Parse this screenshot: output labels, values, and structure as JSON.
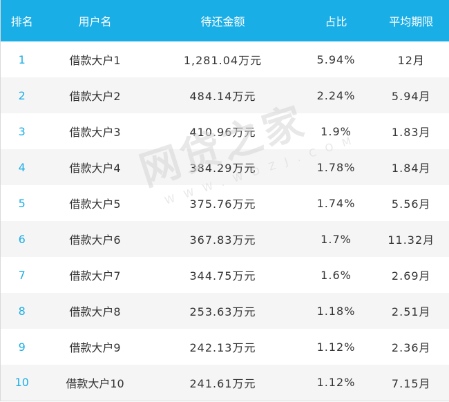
{
  "headers": {
    "rank": "排名",
    "user": "用户名",
    "amount": "待还金额",
    "ratio": "占比",
    "term": "平均期限"
  },
  "rows": [
    {
      "rank": "1",
      "user": "借款大户1",
      "amount": "1,281.04万元",
      "ratio": "5.94%",
      "term": "12月"
    },
    {
      "rank": "2",
      "user": "借款大户2",
      "amount": "484.14万元",
      "ratio": "2.24%",
      "term": "5.94月"
    },
    {
      "rank": "3",
      "user": "借款大户3",
      "amount": "410.96万元",
      "ratio": "1.9%",
      "term": "1.83月"
    },
    {
      "rank": "4",
      "user": "借款大户4",
      "amount": "384.29万元",
      "ratio": "1.78%",
      "term": "1.84月"
    },
    {
      "rank": "5",
      "user": "借款大户5",
      "amount": "375.76万元",
      "ratio": "1.74%",
      "term": "5.56月"
    },
    {
      "rank": "6",
      "user": "借款大户6",
      "amount": "367.83万元",
      "ratio": "1.7%",
      "term": "11.32月"
    },
    {
      "rank": "7",
      "user": "借款大户7",
      "amount": "344.75万元",
      "ratio": "1.6%",
      "term": "2.69月"
    },
    {
      "rank": "8",
      "user": "借款大户8",
      "amount": "253.63万元",
      "ratio": "1.18%",
      "term": "2.51月"
    },
    {
      "rank": "9",
      "user": "借款大户9",
      "amount": "242.13万元",
      "ratio": "1.12%",
      "term": "2.36月"
    },
    {
      "rank": "10",
      "user": "借款大户10",
      "amount": "241.61万元",
      "ratio": "1.12%",
      "term": "7.15月"
    }
  ],
  "watermark": {
    "main": "网贷之家",
    "sub": "WWW.WDZJ.COM"
  },
  "colors": {
    "header_bg": "#1aaee6",
    "rank_text": "#1aaee6",
    "stripe": "#f5f5f5"
  }
}
